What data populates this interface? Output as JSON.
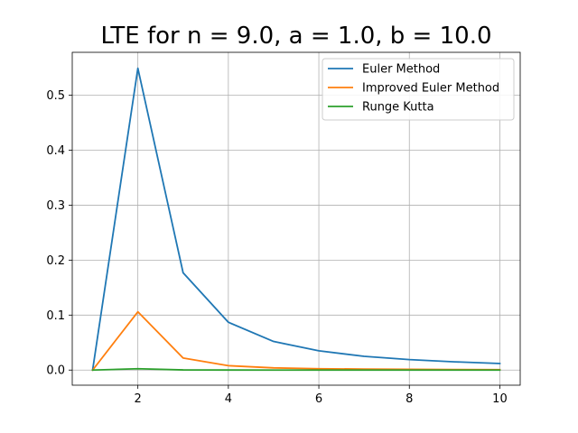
{
  "chart_data": {
    "type": "line",
    "title": "LTE for n = 9.0, a = 1.0, b = 10.0",
    "xlabel": "",
    "ylabel": "",
    "x": [
      1,
      2,
      3,
      4,
      5,
      6,
      7,
      8,
      9,
      10
    ],
    "xlim": [
      0.55,
      10.45
    ],
    "ylim": [
      -0.0275,
      0.578
    ],
    "xticks": [
      2,
      4,
      6,
      8,
      10
    ],
    "yticks": [
      0.0,
      0.1,
      0.2,
      0.3,
      0.4,
      0.5
    ],
    "ytick_labels": [
      "0.0",
      "0.1",
      "0.2",
      "0.3",
      "0.4",
      "0.5"
    ],
    "grid": true,
    "legend_position": "top-right",
    "series": [
      {
        "name": "Euler Method",
        "color": "#1f77b4",
        "values": [
          0.0,
          0.549,
          0.177,
          0.087,
          0.052,
          0.035,
          0.025,
          0.019,
          0.015,
          0.012
        ]
      },
      {
        "name": "Improved Euler Method",
        "color": "#ff7f0e",
        "values": [
          0.0,
          0.106,
          0.022,
          0.008,
          0.004,
          0.0025,
          0.0018,
          0.0013,
          0.001,
          0.0008
        ]
      },
      {
        "name": "Runge Kutta",
        "color": "#2ca02c",
        "values": [
          0.0,
          0.0025,
          0.0003,
          0.0001,
          0.0,
          0.0,
          0.0,
          0.0,
          0.0,
          0.0
        ]
      }
    ]
  }
}
